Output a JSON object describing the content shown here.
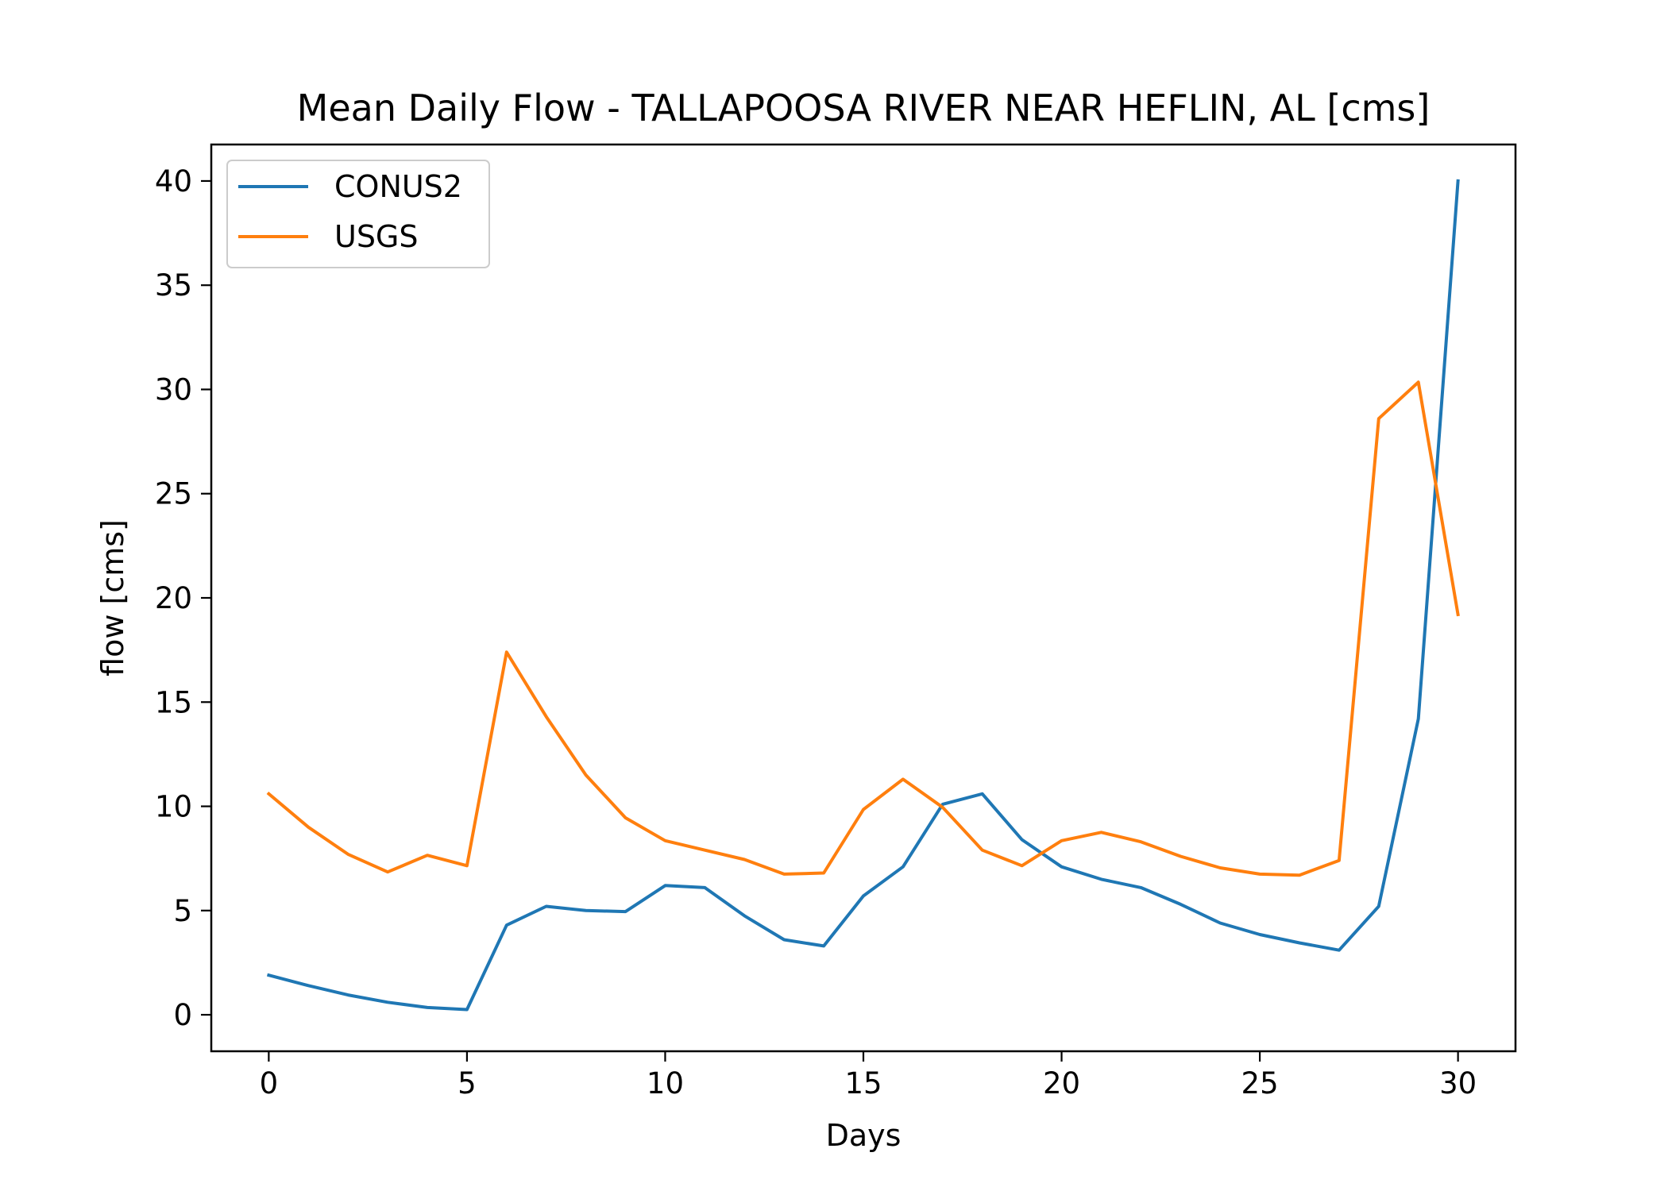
{
  "chart_data": {
    "type": "line",
    "title": "Mean Daily Flow - TALLAPOOSA RIVER NEAR HEFLIN, AL [cms]",
    "xlabel": "Days",
    "ylabel": "flow [cms]",
    "xlim": [
      -1.45,
      31.45
    ],
    "ylim": [
      -1.75,
      41.75
    ],
    "xticks": [
      0,
      5,
      10,
      15,
      20,
      25,
      30
    ],
    "yticks": [
      0,
      5,
      10,
      15,
      20,
      25,
      30,
      35,
      40
    ],
    "grid": false,
    "legend_position": "top-left",
    "x": [
      0,
      1,
      2,
      3,
      4,
      5,
      6,
      7,
      8,
      9,
      10,
      11,
      12,
      13,
      14,
      15,
      16,
      17,
      18,
      19,
      20,
      21,
      22,
      23,
      24,
      25,
      26,
      27,
      28,
      29,
      30
    ],
    "series": [
      {
        "name": "CONUS2",
        "color": "#1f77b4",
        "values": [
          1.9,
          1.4,
          0.95,
          0.6,
          0.35,
          0.25,
          4.3,
          5.2,
          5.0,
          4.95,
          6.2,
          6.1,
          4.75,
          3.6,
          3.3,
          5.7,
          7.1,
          10.1,
          10.6,
          8.4,
          7.1,
          6.5,
          6.1,
          5.3,
          4.4,
          3.85,
          3.45,
          3.1,
          5.2,
          14.2,
          40.0
        ]
      },
      {
        "name": "USGS",
        "color": "#ff7f0e",
        "values": [
          10.6,
          9.0,
          7.7,
          6.85,
          7.65,
          7.15,
          17.4,
          14.3,
          11.5,
          9.45,
          8.35,
          7.9,
          7.45,
          6.75,
          6.8,
          9.85,
          11.3,
          9.95,
          7.9,
          7.15,
          8.35,
          8.75,
          8.3,
          7.6,
          7.05,
          6.75,
          6.7,
          7.4,
          28.6,
          30.35,
          19.2
        ]
      }
    ]
  }
}
